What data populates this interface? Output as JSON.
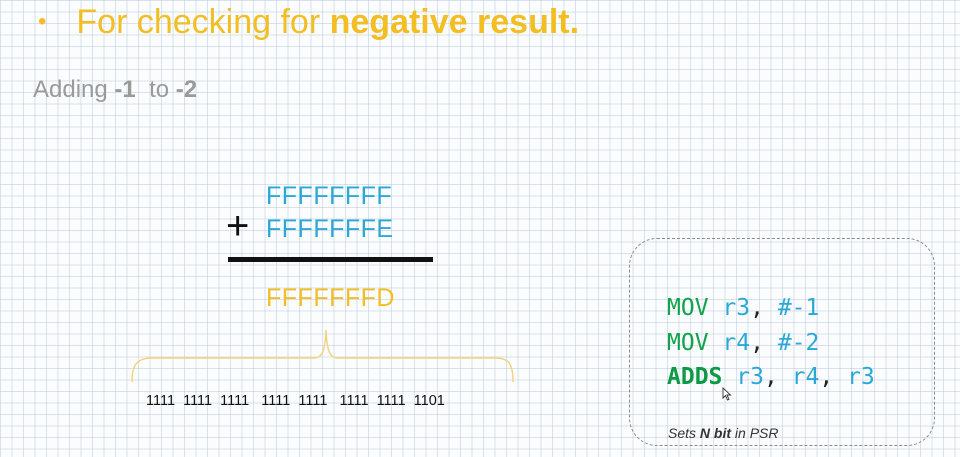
{
  "heading": {
    "bullet": "•",
    "text": "For checking for ",
    "emphasis": "negative result."
  },
  "subtitle": {
    "prefix": "Adding ",
    "a": "-1",
    "middle": "  to ",
    "b": "-2"
  },
  "addition": {
    "operator": "+",
    "operand1": "FFFFFFFF",
    "operand2": "FFFFFFFE",
    "result": "FFFFFFFD",
    "binary": "1111  1111  1111   1111  1111   1111  1111  1101"
  },
  "code": {
    "lines": [
      {
        "op": "MOV",
        "a1": "r3",
        "sep1": ", ",
        "a2": "#-1"
      },
      {
        "op": "MOV",
        "a1": "r4",
        "sep1": ", ",
        "a2": "#-2"
      },
      {
        "op": "ADDS",
        "a1": "r3",
        "sep1": ", ",
        "a2": "r4",
        "sep2": ", ",
        "a3": "r3"
      }
    ],
    "note_prefix": "Sets ",
    "note_bold": "N bit",
    "note_suffix": " in PSR"
  },
  "colors": {
    "accent_yellow": "#f2be22",
    "operand_blue": "#2aa8d8",
    "opcode_green": "#13a24d"
  },
  "icons": {
    "cursor": "mouse-pointer-icon",
    "bullet": "bullet-icon",
    "brace": "curly-brace-icon"
  }
}
